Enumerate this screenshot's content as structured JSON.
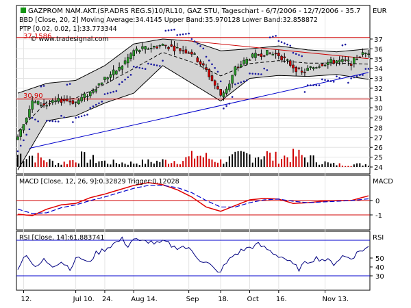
{
  "chart_data": {
    "type": "stock-candlestick",
    "title": "GAZPROM NAM.AKT.(SP.ADRS REG.S)10/RL10, GAZ STU, Tageschart - 6/7/2006 - 12/7/2006 - 35.7",
    "currency_label": "EUR",
    "watermark": "© www.tradesignal.com",
    "indicators": {
      "bbd": "BBD [Close, 20, 2] Moving Average:34.4145 Upper Band:35.970128 Lower Band:32.858872",
      "ptp": "PTP [0.02, 0.02, 1]:33.773344",
      "macd": "MACD [Close, 12, 26, 9]:0.32829 Trigger:0.12028",
      "rsi": "RSI [Close, 14]:61.883741"
    },
    "price_axis": {
      "min": 24,
      "max": 37,
      "ticks": [
        "37",
        "36",
        "35",
        "34",
        "33",
        "32",
        "31",
        "30",
        "29",
        "28",
        "27",
        "26",
        "25",
        "24"
      ]
    },
    "macd_axis": {
      "label": "MACD",
      "ticks": [
        "0",
        "-1"
      ]
    },
    "rsi_axis": {
      "label": "RSI",
      "ticks": [
        "50",
        "40",
        "30"
      ]
    },
    "horizontal_lines": {
      "resistance": 37.1586,
      "support": 30.9
    },
    "labels": {
      "resistance": "37.1586",
      "support": "30.90"
    },
    "x_ticks": [
      "12.",
      "Jul 10.",
      "24.",
      "Aug 14.",
      "Sep",
      "18.",
      "Oct",
      "16.",
      "Nov 13."
    ],
    "x_tick_index": [
      2,
      20,
      30,
      40,
      59,
      70,
      80,
      90,
      106
    ],
    "n_bars": 122,
    "close_points": [
      [
        0,
        27.2
      ],
      [
        5,
        30.6
      ],
      [
        10,
        30.3
      ],
      [
        15,
        30.8
      ],
      [
        20,
        30.6
      ],
      [
        25,
        31.6
      ],
      [
        30,
        33.0
      ],
      [
        35,
        34.0
      ],
      [
        40,
        35.8
      ],
      [
        45,
        36.1
      ],
      [
        50,
        36.4
      ],
      [
        55,
        36.0
      ],
      [
        60,
        35.6
      ],
      [
        65,
        33.8
      ],
      [
        68,
        32.3
      ],
      [
        70,
        31.3
      ],
      [
        73,
        32.4
      ],
      [
        75,
        34.0
      ],
      [
        80,
        35.1
      ],
      [
        85,
        35.6
      ],
      [
        90,
        35.4
      ],
      [
        95,
        34.2
      ],
      [
        98,
        33.5
      ],
      [
        100,
        33.9
      ],
      [
        105,
        34.5
      ],
      [
        110,
        34.8
      ],
      [
        115,
        34.6
      ],
      [
        118,
        35.3
      ],
      [
        121,
        35.7
      ]
    ],
    "bb_upper_points": [
      [
        0,
        31.5
      ],
      [
        10,
        32.5
      ],
      [
        20,
        32.8
      ],
      [
        30,
        34.3
      ],
      [
        40,
        36.5
      ],
      [
        50,
        37.0
      ],
      [
        60,
        36.8
      ],
      [
        70,
        35.8
      ],
      [
        80,
        36.0
      ],
      [
        90,
        36.3
      ],
      [
        100,
        35.9
      ],
      [
        110,
        35.7
      ],
      [
        121,
        36.0
      ]
    ],
    "bb_lower_points": [
      [
        0,
        23.7
      ],
      [
        10,
        28.7
      ],
      [
        20,
        29.2
      ],
      [
        30,
        30.5
      ],
      [
        40,
        31.5
      ],
      [
        50,
        34.3
      ],
      [
        60,
        32.5
      ],
      [
        70,
        30.7
      ],
      [
        80,
        33.0
      ],
      [
        90,
        33.3
      ],
      [
        100,
        33.2
      ],
      [
        110,
        33.4
      ],
      [
        121,
        32.9
      ]
    ],
    "trendline_support": [
      [
        4,
        25.9
      ],
      [
        121,
        33.6
      ]
    ],
    "trendline_resistance": [
      [
        56,
        36.9
      ],
      [
        121,
        35.0
      ]
    ],
    "volume_points": [
      [
        4,
        2.1
      ],
      [
        11,
        1.0
      ],
      [
        15,
        0.6
      ],
      [
        22,
        1.7
      ],
      [
        31,
        0.8
      ],
      [
        39,
        0.7
      ],
      [
        46,
        0.9
      ],
      [
        57,
        1.2
      ],
      [
        62,
        2.1
      ],
      [
        70,
        1.0
      ],
      [
        78,
        2.0
      ],
      [
        86,
        2.2
      ],
      [
        88,
        1.6
      ],
      [
        97,
        2.0
      ],
      [
        108,
        0.5
      ],
      [
        114,
        0.4
      ],
      [
        121,
        0.5
      ]
    ],
    "macd_points": [
      [
        0,
        -0.95
      ],
      [
        5,
        -1.05
      ],
      [
        10,
        -0.6
      ],
      [
        15,
        -0.3
      ],
      [
        20,
        -0.2
      ],
      [
        25,
        0.2
      ],
      [
        30,
        0.45
      ],
      [
        35,
        0.75
      ],
      [
        40,
        1.05
      ],
      [
        45,
        1.25
      ],
      [
        50,
        1.1
      ],
      [
        55,
        0.75
      ],
      [
        60,
        0.25
      ],
      [
        65,
        -0.45
      ],
      [
        70,
        -0.75
      ],
      [
        75,
        -0.35
      ],
      [
        80,
        0.05
      ],
      [
        85,
        0.15
      ],
      [
        90,
        0.1
      ],
      [
        95,
        -0.2
      ],
      [
        100,
        -0.15
      ],
      [
        105,
        -0.05
      ],
      [
        110,
        0.0
      ],
      [
        115,
        0.0
      ],
      [
        121,
        0.33
      ]
    ],
    "trigger_points": [
      [
        0,
        -0.6
      ],
      [
        5,
        -0.9
      ],
      [
        10,
        -0.85
      ],
      [
        15,
        -0.5
      ],
      [
        20,
        -0.3
      ],
      [
        25,
        0.0
      ],
      [
        30,
        0.25
      ],
      [
        35,
        0.55
      ],
      [
        40,
        0.85
      ],
      [
        45,
        1.05
      ],
      [
        50,
        1.05
      ],
      [
        55,
        0.9
      ],
      [
        60,
        0.55
      ],
      [
        65,
        0.0
      ],
      [
        70,
        -0.45
      ],
      [
        75,
        -0.45
      ],
      [
        80,
        -0.15
      ],
      [
        85,
        0.05
      ],
      [
        90,
        0.1
      ],
      [
        95,
        -0.05
      ],
      [
        100,
        -0.15
      ],
      [
        105,
        -0.1
      ],
      [
        110,
        -0.05
      ],
      [
        115,
        0.0
      ],
      [
        121,
        0.12
      ]
    ],
    "rsi_points": [
      [
        0,
        40
      ],
      [
        3,
        55
      ],
      [
        6,
        38
      ],
      [
        9,
        48
      ],
      [
        12,
        42
      ],
      [
        15,
        46
      ],
      [
        18,
        39
      ],
      [
        21,
        52
      ],
      [
        24,
        44
      ],
      [
        27,
        55
      ],
      [
        30,
        60
      ],
      [
        33,
        66
      ],
      [
        36,
        71
      ],
      [
        38,
        64
      ],
      [
        40,
        72
      ],
      [
        42,
        68
      ],
      [
        45,
        69
      ],
      [
        48,
        66
      ],
      [
        51,
        68
      ],
      [
        54,
        62
      ],
      [
        57,
        63
      ],
      [
        60,
        58
      ],
      [
        63,
        48
      ],
      [
        66,
        43
      ],
      [
        69,
        33
      ],
      [
        71,
        40
      ],
      [
        74,
        52
      ],
      [
        77,
        58
      ],
      [
        80,
        62
      ],
      [
        83,
        65
      ],
      [
        86,
        60
      ],
      [
        89,
        54
      ],
      [
        92,
        50
      ],
      [
        95,
        42
      ],
      [
        97,
        38
      ],
      [
        100,
        46
      ],
      [
        103,
        50
      ],
      [
        106,
        48
      ],
      [
        109,
        44
      ],
      [
        112,
        52
      ],
      [
        115,
        50
      ],
      [
        118,
        58
      ],
      [
        121,
        62
      ]
    ],
    "rsi_levels": {
      "upper": 70,
      "lower": 30
    }
  }
}
